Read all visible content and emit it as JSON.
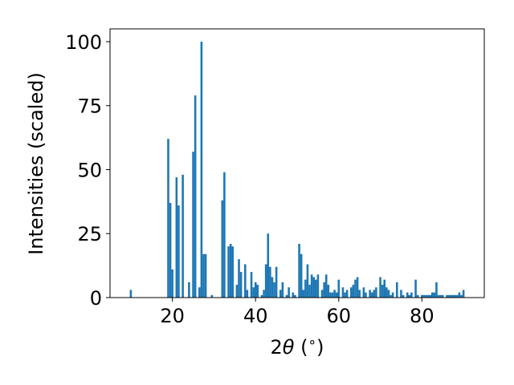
{
  "chart_data": {
    "type": "bar",
    "title": "",
    "xlabel_parts": [
      "2",
      "θ",
      " (",
      "∘",
      ")"
    ],
    "ylabel": "Intensities (scaled)",
    "xlim": [
      5,
      95
    ],
    "ylim": [
      0,
      105
    ],
    "xticks": [
      20,
      40,
      60,
      80
    ],
    "yticks": [
      0,
      25,
      50,
      75,
      100
    ],
    "bar_color": "#1f77b4",
    "bar_width": 0.5,
    "grid": false,
    "series": [
      {
        "x": [
          10.0,
          19.0,
          19.5,
          20.0,
          21.0,
          21.5,
          22.5,
          24.0,
          25.0,
          25.5,
          26.5,
          27.0,
          27.5,
          28.0,
          29.5,
          32.0,
          32.5,
          33.5,
          34.0,
          34.5,
          35.5,
          36.0,
          36.5,
          37.5,
          38.0,
          39.0,
          39.5,
          40.0,
          40.5,
          41.5,
          42.0,
          42.5,
          43.0,
          43.5,
          44.0,
          44.5,
          45.0,
          46.0,
          46.5,
          47.5,
          48.0,
          49.0,
          49.5,
          50.5,
          51.0,
          51.5,
          52.0,
          52.5,
          53.0,
          53.5,
          54.0,
          54.5,
          55.0,
          56.0,
          56.5,
          57.0,
          57.5,
          58.0,
          58.5,
          59.0,
          59.5,
          60.0,
          61.0,
          61.5,
          62.0,
          63.0,
          63.5,
          64.0,
          64.5,
          65.0,
          66.0,
          66.5,
          67.5,
          68.0,
          68.5,
          69.0,
          70.0,
          70.5,
          71.0,
          71.5,
          72.0,
          72.5,
          73.0,
          74.0,
          75.0,
          75.5,
          76.5,
          77.0,
          77.5,
          78.5,
          79.0,
          80.0,
          80.5,
          81.0,
          81.5,
          82.0,
          82.5,
          83.0,
          83.5,
          84.0,
          84.5,
          85.0,
          86.0,
          86.5,
          87.0,
          87.5,
          88.0,
          88.5,
          89.0,
          89.5,
          90.0
        ],
        "values": [
          3,
          62,
          37,
          11,
          47,
          36,
          48,
          6,
          57,
          79,
          4,
          100,
          17,
          17,
          1,
          38,
          49,
          20,
          21,
          20,
          5,
          15,
          10,
          13,
          3,
          10,
          4,
          6,
          5,
          1,
          3,
          13,
          25,
          12,
          8,
          6,
          12,
          3,
          6,
          1,
          4,
          2,
          1,
          21,
          17,
          3,
          7,
          13,
          5,
          9,
          8,
          7,
          9,
          3,
          6,
          9,
          5,
          2,
          2,
          3,
          2,
          7,
          4,
          2,
          3,
          4,
          5,
          7,
          8,
          3,
          4,
          2,
          3,
          2,
          3,
          4,
          8,
          5,
          7,
          4,
          3,
          1,
          2,
          6,
          3,
          1,
          2,
          1,
          2,
          7,
          1,
          1,
          1,
          1,
          1,
          1,
          2,
          2,
          6,
          1,
          1,
          1,
          1,
          1,
          1,
          1,
          1,
          1,
          2,
          1,
          3
        ]
      }
    ]
  }
}
